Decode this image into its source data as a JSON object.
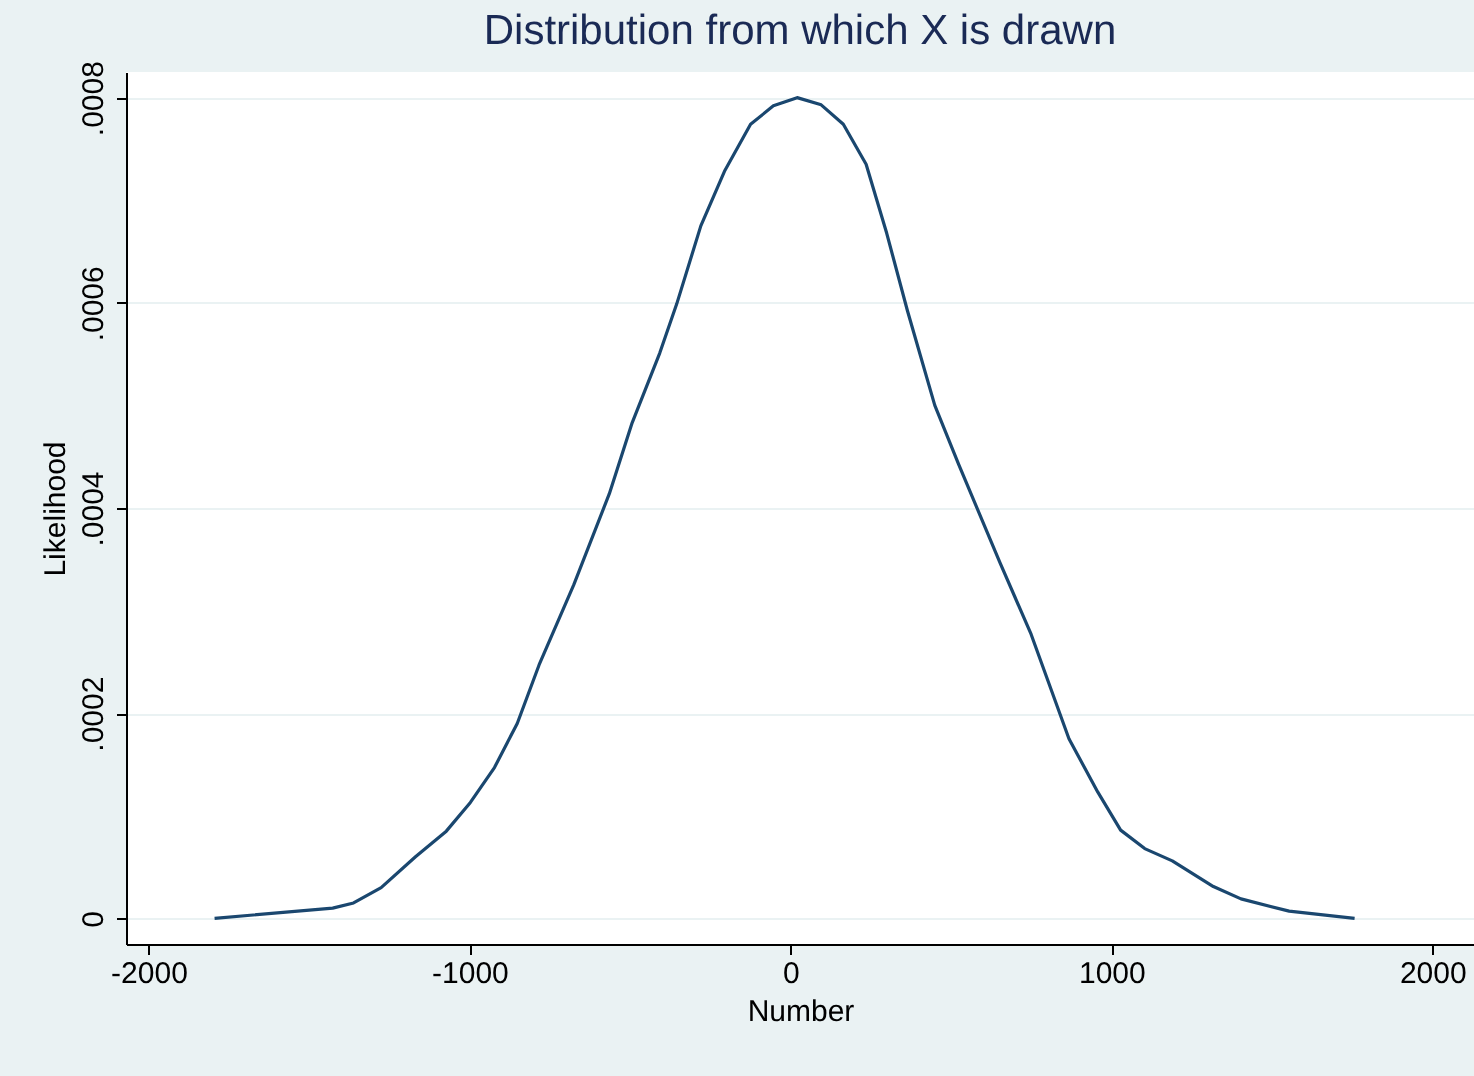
{
  "chart_data": {
    "type": "line",
    "title": "Distribution from which X is drawn",
    "xlabel": "Number",
    "ylabel": "Likelihood",
    "x": [
      -1794,
      -1426,
      -1361,
      -1275,
      -1168,
      -1072,
      -997,
      -922,
      -851,
      -783,
      -675,
      -564,
      -493,
      -407,
      -354,
      -279,
      -204,
      -124,
      -53,
      21,
      96,
      165,
      236,
      300,
      365,
      450,
      525,
      654,
      750,
      868,
      958,
      1029,
      1104,
      1190,
      1318,
      1404,
      1554,
      1758
    ],
    "series": [
      {
        "color": "#1a476f",
        "values": [
          0,
          1e-05,
          1.5e-05,
          3e-05,
          6e-05,
          8.5e-05,
          0.000113,
          0.000147,
          0.00019,
          0.000247,
          0.000325,
          0.000414,
          0.000483,
          0.000551,
          0.000599,
          0.000675,
          0.000729,
          0.000774,
          0.000792,
          0.0008,
          0.000793,
          0.000774,
          0.000735,
          0.000668,
          0.000592,
          0.0005,
          0.000442,
          0.000346,
          0.000277,
          0.000175,
          0.000123,
          8.6e-05,
          6.8e-05,
          5.6e-05,
          3.1e-05,
          1.9e-05,
          7e-06,
          0
        ]
      }
    ],
    "xlim": [
      -2070,
      2130
    ],
    "xticks": [
      -2000,
      -1000,
      0,
      1000,
      2000
    ],
    "ylim": [
      -2.5e-05,
      0.000825
    ],
    "yticks": [
      0,
      {
        "value": 0.0002,
        "label": ".0002"
      },
      {
        "value": 0.0004,
        "label": ".0004"
      },
      {
        "value": 0.0006,
        "label": ".0006"
      },
      {
        "value": 0.0008,
        "label": ".0008"
      }
    ],
    "grid": "y",
    "marker": "none",
    "line_style": "solid"
  }
}
